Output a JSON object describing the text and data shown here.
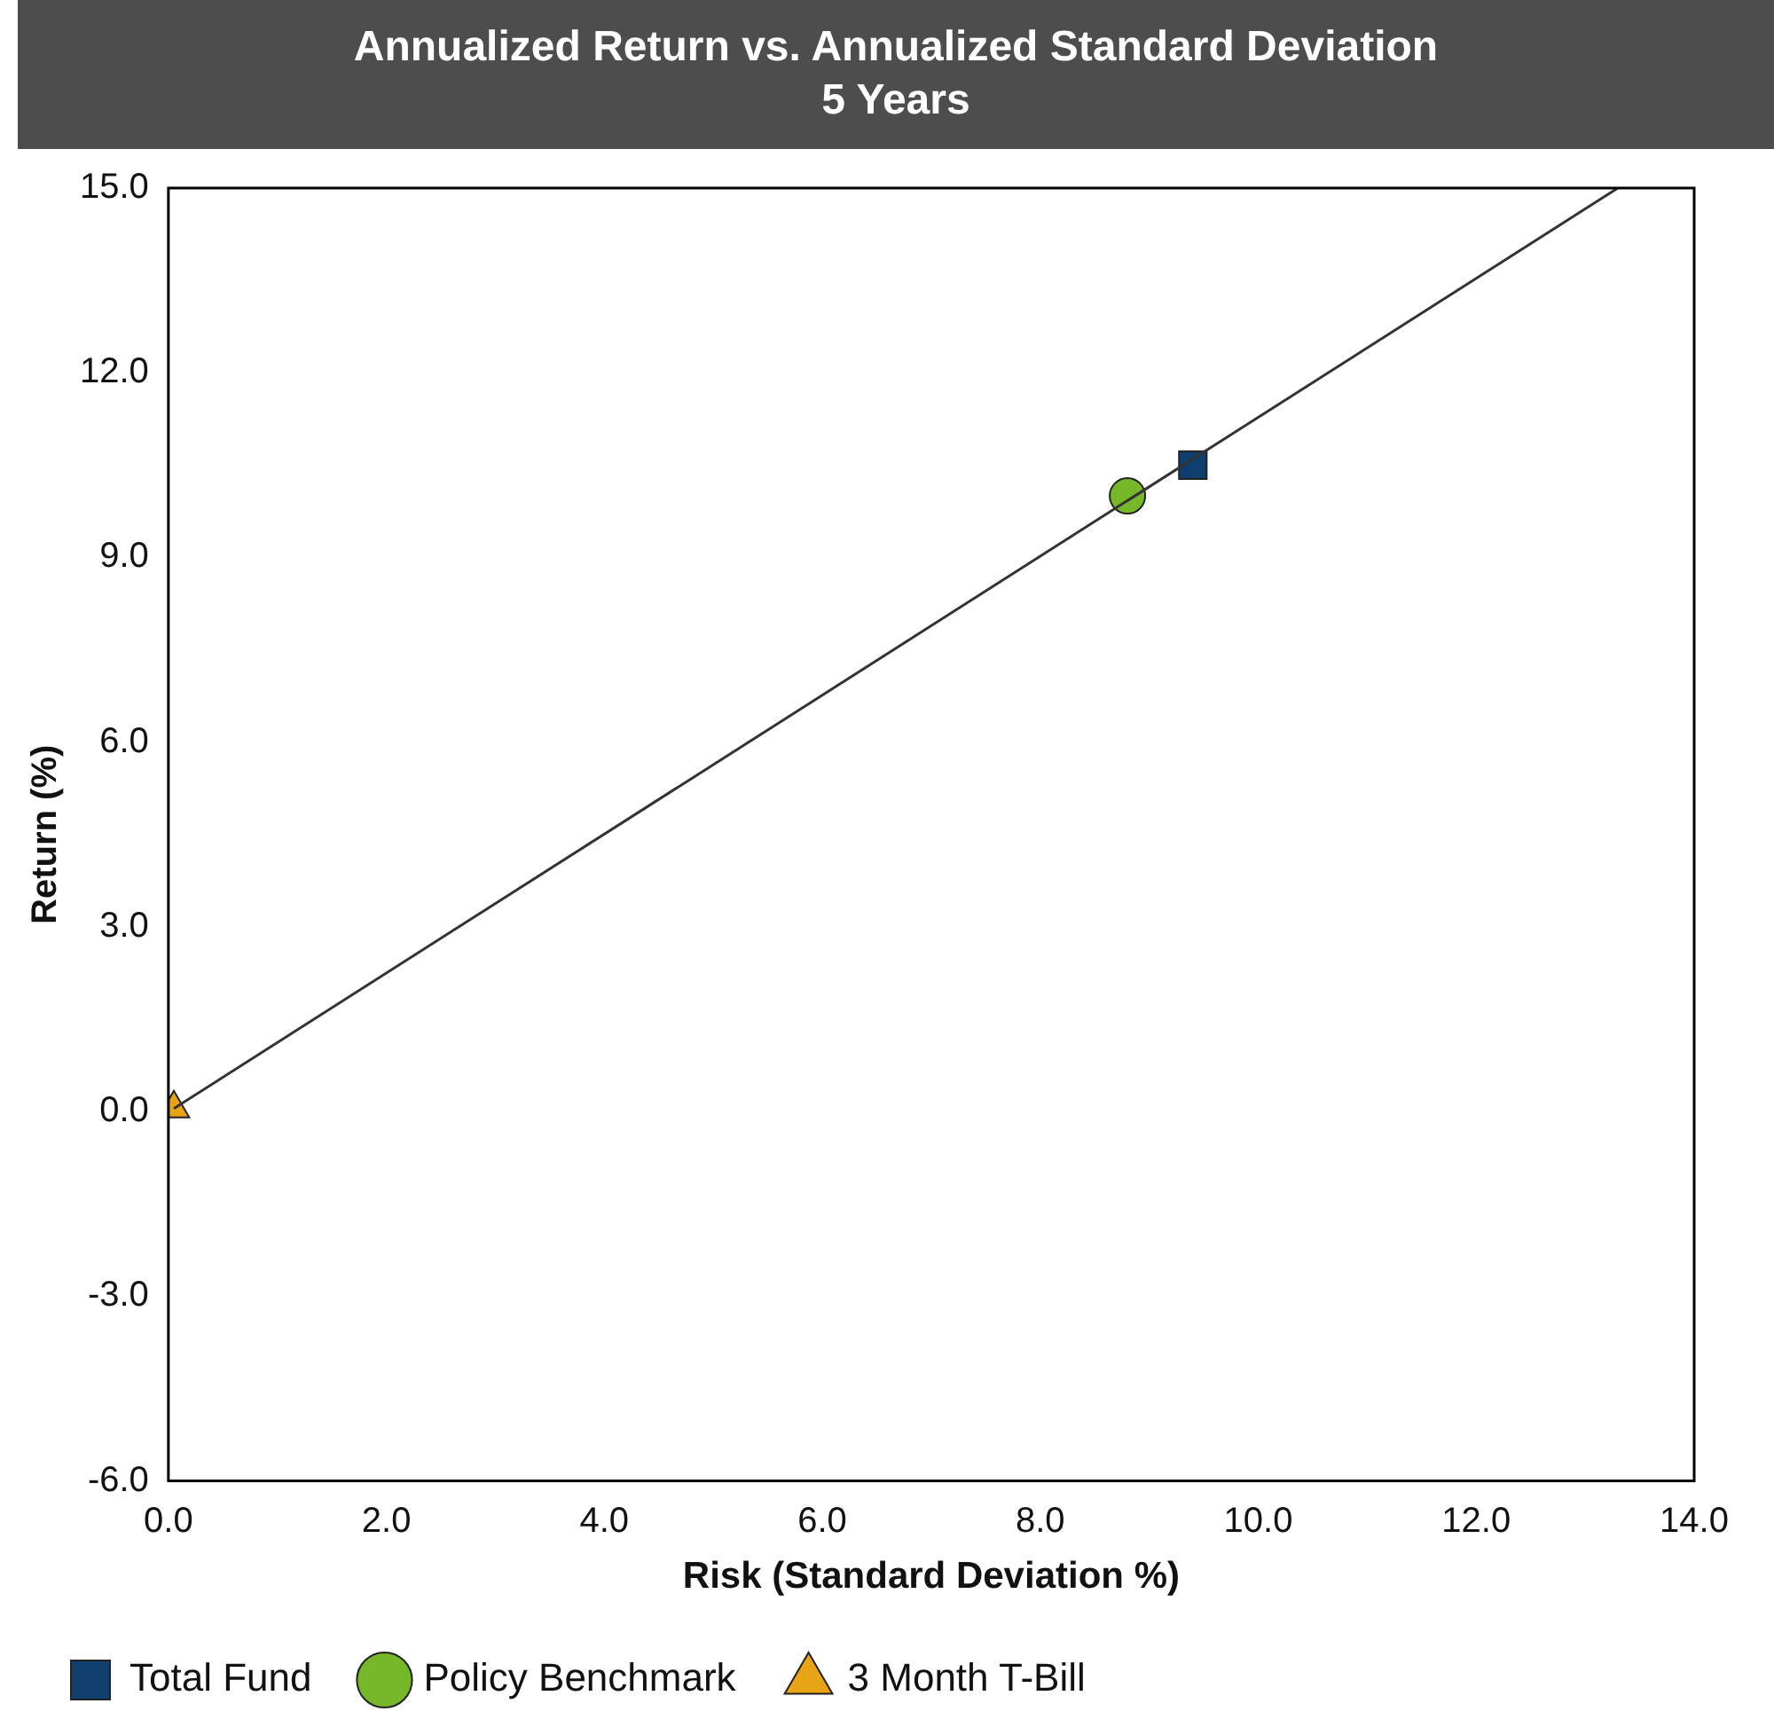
{
  "chart_data": {
    "type": "scatter",
    "title": "Annualized Return vs. Annualized Standard Deviation\n5 Years",
    "xlabel": "Risk (Standard Deviation %)",
    "ylabel": "Return (%)",
    "xlim": [
      0,
      14
    ],
    "xticks": [
      {
        "value": 0,
        "label": "0.0"
      },
      {
        "value": 2,
        "label": "2.0"
      },
      {
        "value": 4,
        "label": "4.0"
      },
      {
        "value": 6,
        "label": "6.0"
      },
      {
        "value": 8,
        "label": "8.0"
      },
      {
        "value": 10,
        "label": "10.0"
      },
      {
        "value": 12,
        "label": "12.0"
      },
      {
        "value": 14,
        "label": "14.0"
      }
    ],
    "ylim": [
      -6,
      15
    ],
    "yticks": [
      {
        "value": -6,
        "label": "-6.0"
      },
      {
        "value": -3,
        "label": "-3.0"
      },
      {
        "value": 0,
        "label": "0.0"
      },
      {
        "value": 3,
        "label": "3.0"
      },
      {
        "value": 6,
        "label": "6.0"
      },
      {
        "value": 9,
        "label": "9.0"
      },
      {
        "value": 12,
        "label": "12.0"
      },
      {
        "value": 15,
        "label": "15.0"
      }
    ],
    "grid": false,
    "legend": "bottom",
    "series": [
      {
        "type": "line",
        "color": "#333333",
        "marker": "none",
        "x": [
          0.05,
          13.3
        ],
        "values": [
          0.05,
          15.0
        ]
      },
      {
        "name": "Total Fund",
        "color": "#0e3f6e",
        "marker": "square",
        "x": [
          9.4
        ],
        "values": [
          10.5
        ]
      },
      {
        "name": "Policy Benchmark",
        "color": "#76b82a",
        "marker": "circle",
        "x": [
          8.8
        ],
        "values": [
          10.0
        ]
      },
      {
        "name": "3 Month T-Bill",
        "color": "#e8a317",
        "marker": "triangle",
        "x": [
          0.05
        ],
        "values": [
          0.05
        ]
      }
    ]
  }
}
